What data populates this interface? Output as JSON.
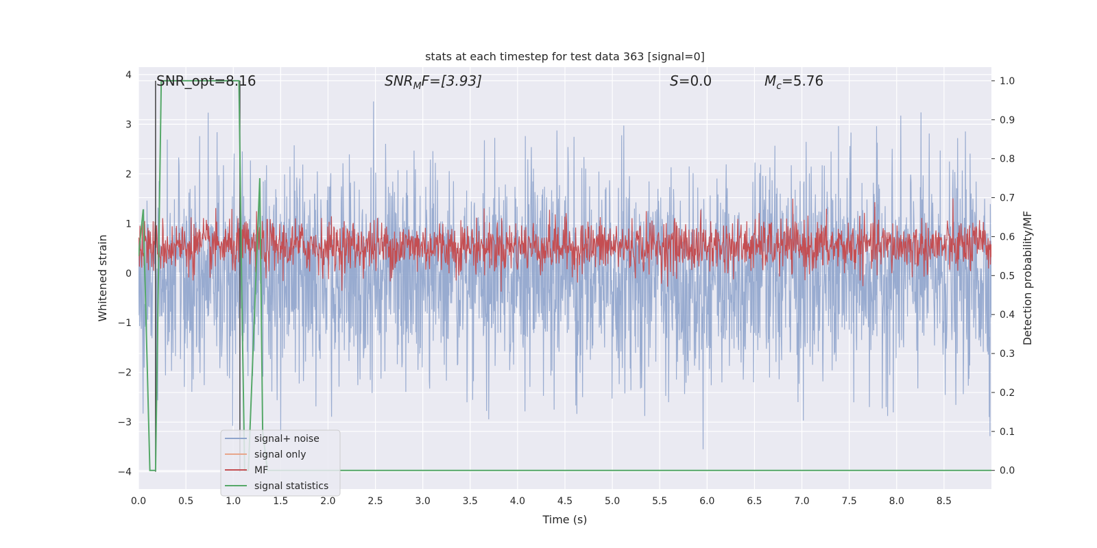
{
  "chart_data": {
    "type": "line",
    "title": "stats at each timestep for test data 363 [signal=0]",
    "xlabel": "Time (s)",
    "ylabel": "Whitened strain",
    "y2label": "Detection probability/MF",
    "xlim": [
      0.0,
      9.0
    ],
    "ylim": [
      -4.35,
      4.15
    ],
    "y2lim": [
      -0.048,
      1.035
    ],
    "xticks": [
      "0.0",
      "0.5",
      "1.0",
      "1.5",
      "2.0",
      "2.5",
      "3.0",
      "3.5",
      "4.0",
      "4.5",
      "5.0",
      "5.5",
      "6.0",
      "6.5",
      "7.0",
      "7.5",
      "8.0",
      "8.5"
    ],
    "yticks": [
      "4",
      "3",
      "2",
      "1",
      "0",
      "−1",
      "−2",
      "−3",
      "−4"
    ],
    "y2ticks": [
      "1.0",
      "0.9",
      "0.8",
      "0.7",
      "0.6",
      "0.5",
      "0.4",
      "0.3",
      "0.2",
      "0.1",
      "0.0"
    ],
    "grid": true,
    "legend_position": "lower-left",
    "annotations": {
      "snr_opt": "SNR_opt=8.16",
      "snr_mf_main": "SNR",
      "snr_mf_sub": "M",
      "snr_mf_rest": "F=[3.93]",
      "s_main": "S",
      "s_rest": "=0.0",
      "mc_main": "M",
      "mc_sub": "c",
      "mc_rest": "=5.76"
    },
    "series": [
      {
        "name": "signal+ noise",
        "color": "#8fa4cc",
        "axis": "left",
        "noise_band_approx": [
          -2.4,
          2.4
        ]
      },
      {
        "name": "signal only",
        "color": "#e8a58a",
        "axis": "left",
        "values": []
      },
      {
        "name": "MF",
        "color": "#c44e52",
        "axis": "right",
        "band_approx": [
          0.52,
          0.63
        ]
      },
      {
        "name": "signal statistics",
        "color": "#55a868",
        "axis": "right",
        "x": [
          0.0,
          0.05,
          0.12,
          0.18,
          0.24,
          0.26,
          1.06,
          1.09,
          1.12,
          1.16,
          1.28,
          1.31,
          1.36,
          9.0
        ],
        "values": [
          0.55,
          0.67,
          0.0,
          0.0,
          1.0,
          1.0,
          1.0,
          0.45,
          0.0,
          0.0,
          0.75,
          0.1,
          0.0,
          0.0
        ]
      }
    ],
    "vertical_markers_x": [
      0.18,
      1.07
    ],
    "colors": {
      "plot_bg": "#eaeaf2",
      "grid": "#ffffff",
      "marker": "#404040"
    }
  }
}
